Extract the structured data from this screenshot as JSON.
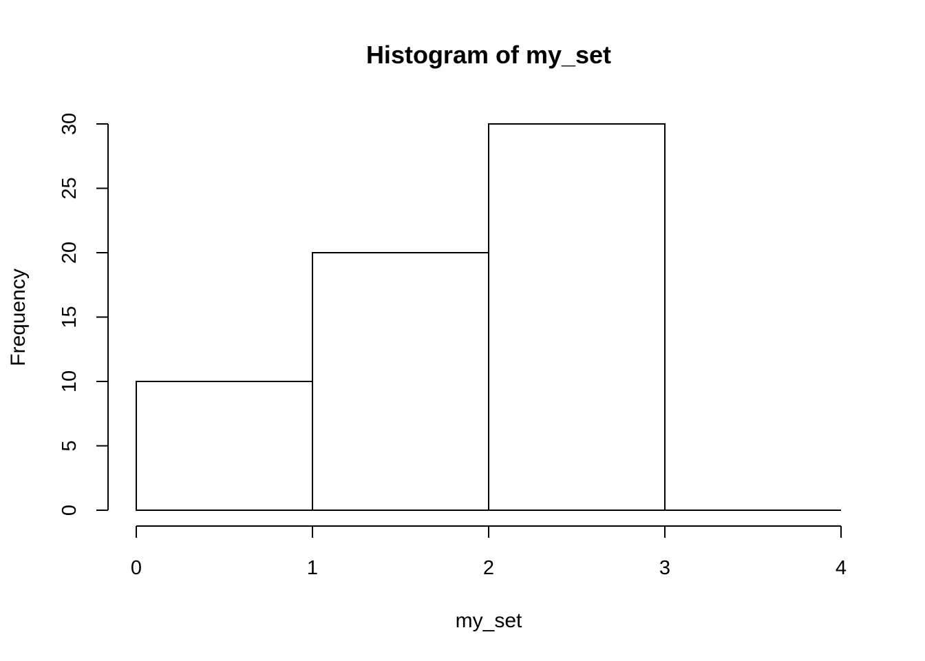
{
  "chart_data": {
    "type": "bar",
    "title": "Histogram of my_set",
    "xlabel": "my_set",
    "ylabel": "Frequency",
    "bins": [
      {
        "start": 0,
        "end": 1,
        "count": 10
      },
      {
        "start": 1,
        "end": 2,
        "count": 20
      },
      {
        "start": 2,
        "end": 3,
        "count": 30
      },
      {
        "start": 3,
        "end": 4,
        "count": 0
      }
    ],
    "xlim": [
      0,
      4
    ],
    "ylim": [
      0,
      30
    ],
    "x_ticks": [
      "0",
      "1",
      "2",
      "3",
      "4"
    ],
    "y_ticks": [
      "0",
      "5",
      "10",
      "15",
      "20",
      "25",
      "30"
    ],
    "grid": false,
    "bar_fill": "#ffffff",
    "bar_stroke": "#000000"
  }
}
